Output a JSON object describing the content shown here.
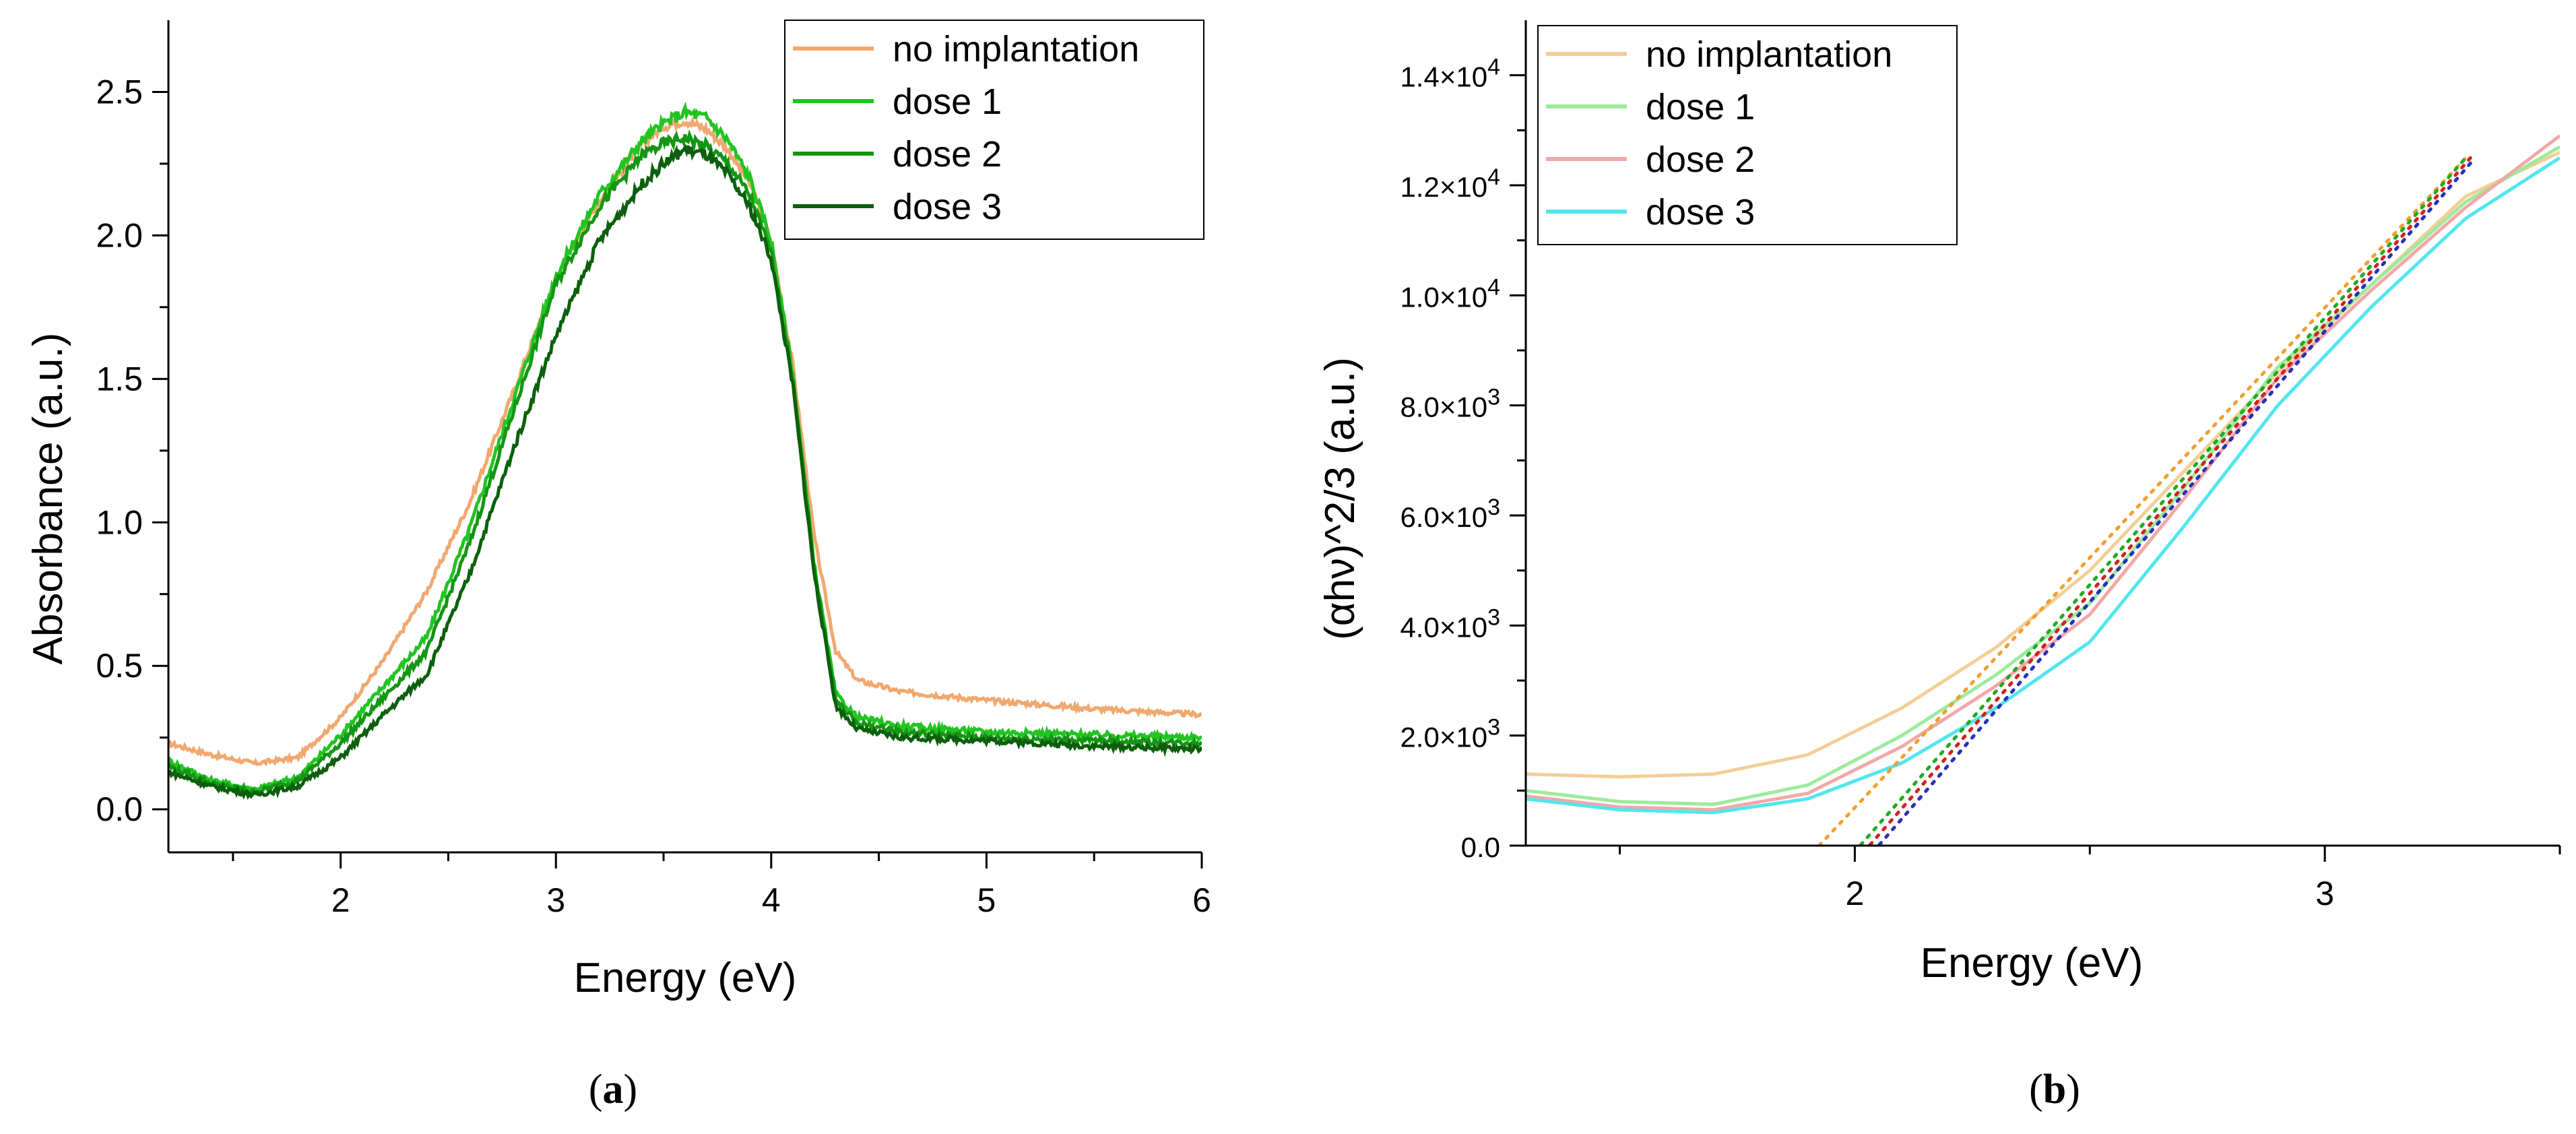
{
  "chart_data": [
    {
      "type": "line",
      "panel_label": "a",
      "xlabel": "Energy (eV)",
      "ylabel": "Absorbance (a.u.)",
      "xlim": [
        1.2,
        6.0
      ],
      "ylim": [
        -0.15,
        2.75
      ],
      "xticks": [
        2,
        3,
        4,
        5,
        6
      ],
      "xtick_labels": [
        "2",
        "3",
        "4",
        "5",
        "6"
      ],
      "yticks": [
        0.0,
        0.5,
        1.0,
        1.5,
        2.0,
        2.5
      ],
      "ytick_labels": [
        "0.0",
        "0.5",
        "1.0",
        "1.5",
        "2.0",
        "2.5"
      ],
      "legend_position": "top-right",
      "series": [
        {
          "name": "no implantation",
          "color": "#f0a870",
          "noise": 0.012,
          "x": [
            1.2,
            1.4,
            1.6,
            1.8,
            2.0,
            2.2,
            2.4,
            2.6,
            2.8,
            3.0,
            3.2,
            3.4,
            3.5,
            3.6,
            3.7,
            3.8,
            3.9,
            4.0,
            4.1,
            4.2,
            4.3,
            4.4,
            4.6,
            5.0,
            5.5,
            6.0
          ],
          "y": [
            0.23,
            0.19,
            0.16,
            0.18,
            0.32,
            0.52,
            0.76,
            1.07,
            1.45,
            1.85,
            2.12,
            2.32,
            2.38,
            2.4,
            2.37,
            2.3,
            2.18,
            1.98,
            1.55,
            0.95,
            0.55,
            0.45,
            0.41,
            0.38,
            0.35,
            0.33
          ]
        },
        {
          "name": "dose 1",
          "color": "#22c422",
          "noise": 0.015,
          "x": [
            1.2,
            1.4,
            1.6,
            1.8,
            2.0,
            2.2,
            2.4,
            2.6,
            2.8,
            3.0,
            3.2,
            3.4,
            3.5,
            3.6,
            3.7,
            3.8,
            3.9,
            4.0,
            4.1,
            4.2,
            4.3,
            4.4,
            4.6,
            5.0,
            5.5,
            6.0
          ],
          "y": [
            0.17,
            0.1,
            0.07,
            0.11,
            0.26,
            0.43,
            0.6,
            0.98,
            1.42,
            1.86,
            2.14,
            2.33,
            2.39,
            2.43,
            2.41,
            2.33,
            2.2,
            1.98,
            1.52,
            0.85,
            0.4,
            0.32,
            0.29,
            0.27,
            0.26,
            0.25
          ]
        },
        {
          "name": "dose 2",
          "color": "#149614",
          "noise": 0.015,
          "x": [
            1.2,
            1.4,
            1.6,
            1.8,
            2.0,
            2.2,
            2.4,
            2.6,
            2.8,
            3.0,
            3.2,
            3.4,
            3.5,
            3.6,
            3.7,
            3.8,
            3.9,
            4.0,
            4.1,
            4.2,
            4.3,
            4.4,
            4.6,
            5.0,
            5.5,
            6.0
          ],
          "y": [
            0.15,
            0.09,
            0.06,
            0.1,
            0.23,
            0.39,
            0.55,
            0.93,
            1.38,
            1.83,
            2.1,
            2.28,
            2.32,
            2.34,
            2.31,
            2.25,
            2.14,
            1.94,
            1.5,
            0.84,
            0.38,
            0.3,
            0.27,
            0.25,
            0.24,
            0.23
          ]
        },
        {
          "name": "dose 3",
          "color": "#0c5f0c",
          "noise": 0.015,
          "x": [
            1.2,
            1.4,
            1.6,
            1.8,
            2.0,
            2.2,
            2.4,
            2.6,
            2.8,
            3.0,
            3.2,
            3.4,
            3.5,
            3.6,
            3.7,
            3.8,
            3.9,
            4.0,
            4.1,
            4.2,
            4.3,
            4.4,
            4.6,
            5.0,
            5.5,
            6.0
          ],
          "y": [
            0.13,
            0.08,
            0.05,
            0.08,
            0.18,
            0.33,
            0.47,
            0.82,
            1.25,
            1.65,
            1.98,
            2.18,
            2.25,
            2.3,
            2.28,
            2.21,
            2.1,
            1.92,
            1.48,
            0.82,
            0.36,
            0.28,
            0.25,
            0.24,
            0.22,
            0.21
          ]
        }
      ]
    },
    {
      "type": "line",
      "panel_label": "b",
      "xlabel": "Energy (eV)",
      "ylabel": "(αhν)^2/3 (a.u.)",
      "xlim": [
        1.3,
        3.5
      ],
      "ylim": [
        0,
        15000
      ],
      "xticks": [
        2,
        3
      ],
      "xtick_labels": [
        "2",
        "3"
      ],
      "yticks": [
        0,
        2000,
        4000,
        6000,
        8000,
        10000,
        12000,
        14000
      ],
      "ytick_labels": [
        {
          "mantissa": "0.0",
          "exp": ""
        },
        {
          "mantissa": "2.0×10",
          "exp": "3"
        },
        {
          "mantissa": "4.0×10",
          "exp": "3"
        },
        {
          "mantissa": "6.0×10",
          "exp": "3"
        },
        {
          "mantissa": "8.0×10",
          "exp": "3"
        },
        {
          "mantissa": "1.0×10",
          "exp": "4"
        },
        {
          "mantissa": "1.2×10",
          "exp": "4"
        },
        {
          "mantissa": "1.4×10",
          "exp": "4"
        }
      ],
      "legend_position": "top-left",
      "series": [
        {
          "name": "no implantation",
          "color": "#f2cf98",
          "noise": 0,
          "x": [
            1.3,
            1.5,
            1.7,
            1.9,
            2.1,
            2.3,
            2.5,
            2.7,
            2.9,
            3.1,
            3.3,
            3.5
          ],
          "y": [
            1300,
            1250,
            1300,
            1650,
            2500,
            3600,
            5000,
            6800,
            8600,
            10200,
            11800,
            12600
          ]
        },
        {
          "name": "dose 1",
          "color": "#9ceb9c",
          "noise": 0,
          "x": [
            1.3,
            1.5,
            1.7,
            1.9,
            2.1,
            2.3,
            2.5,
            2.7,
            2.9,
            3.1,
            3.3,
            3.5
          ],
          "y": [
            1000,
            800,
            750,
            1100,
            2000,
            3100,
            4400,
            6500,
            8700,
            10200,
            11700,
            12700
          ]
        },
        {
          "name": "dose 2",
          "color": "#f2a8a8",
          "noise": 0,
          "x": [
            1.3,
            1.5,
            1.7,
            1.9,
            2.1,
            2.3,
            2.5,
            2.7,
            2.9,
            3.1,
            3.3,
            3.5
          ],
          "y": [
            900,
            700,
            650,
            950,
            1800,
            2900,
            4200,
            6300,
            8500,
            10100,
            11600,
            12900
          ]
        },
        {
          "name": "dose 3",
          "color": "#52e6ee",
          "noise": 0,
          "x": [
            1.3,
            1.5,
            1.7,
            1.9,
            2.1,
            2.3,
            2.5,
            2.7,
            2.9,
            3.1,
            3.3,
            3.5
          ],
          "y": [
            850,
            650,
            600,
            850,
            1500,
            2500,
            3700,
            5800,
            8000,
            9800,
            11400,
            12500
          ]
        }
      ],
      "fits": [
        {
          "name": "no implantation",
          "color": "#f0a030",
          "x": [
            1.88,
            3.3
          ],
          "y": [
            -400,
            12500
          ]
        },
        {
          "name": "dose 1",
          "color": "#22aa22",
          "x": [
            1.97,
            3.3
          ],
          "y": [
            -400,
            12500
          ]
        },
        {
          "name": "dose 2",
          "color": "#d42020",
          "x": [
            1.99,
            3.31
          ],
          "y": [
            -400,
            12500
          ]
        },
        {
          "name": "dose 3",
          "color": "#2830b8",
          "x": [
            2.01,
            3.32
          ],
          "y": [
            -400,
            12500
          ]
        }
      ]
    }
  ]
}
